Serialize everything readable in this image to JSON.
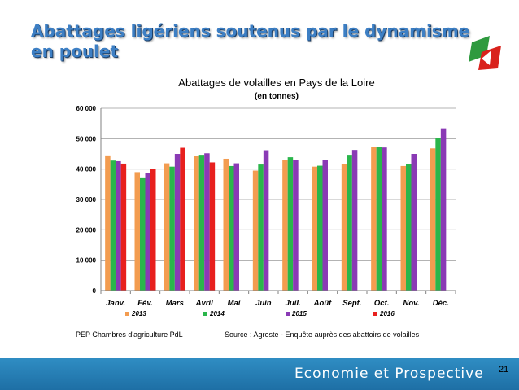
{
  "slide": {
    "title": "Abattages ligériens soutenus par le dynamisme en poulet",
    "footer": "Economie et Prospective",
    "page_number": "21",
    "source_left": "PEP Chambres d'agriculture PdL",
    "source_right": "Source : Agreste - Enquête auprès des abattoirs de volailles",
    "colors": {
      "title": "#3d7fc4",
      "footer": "#1e6fa5",
      "logo_green": "#2e9a3f",
      "logo_red": "#d9221c"
    }
  },
  "chart_data": {
    "type": "bar",
    "title": "Abattages de volailles en Pays de la Loire",
    "subtitle": "(en tonnes)",
    "categories": [
      "Janv.",
      "Fév.",
      "Mars",
      "Avril",
      "Mai",
      "Juin",
      "Juil.",
      "Août",
      "Sept.",
      "Oct.",
      "Nov.",
      "Déc."
    ],
    "series": [
      {
        "name": "2013",
        "color": "#f39c50",
        "values": [
          44500,
          39000,
          41900,
          44200,
          43400,
          39500,
          43000,
          40800,
          41700,
          47300,
          41000,
          46800
        ]
      },
      {
        "name": "2014",
        "color": "#2ab64b",
        "values": [
          42800,
          37000,
          40800,
          44700,
          41000,
          41500,
          43900,
          41100,
          44700,
          47200,
          41700,
          50300
        ]
      },
      {
        "name": "2015",
        "color": "#8a3ab5",
        "values": [
          42600,
          38700,
          45000,
          45200,
          41900,
          46200,
          43100,
          43000,
          46300,
          47100,
          45000,
          53400
        ]
      },
      {
        "name": "2016",
        "color": "#e8201e",
        "values": [
          41800,
          40100,
          47000,
          42200,
          null,
          null,
          null,
          null,
          null,
          null,
          null,
          null
        ]
      }
    ],
    "ylim": [
      0,
      60000
    ],
    "yticks": [
      0,
      10000,
      20000,
      30000,
      40000,
      50000,
      60000
    ],
    "ytick_labels": [
      "0",
      "10 000",
      "20 000",
      "30 000",
      "40 000",
      "50 000",
      "60 000"
    ],
    "xlabel": "",
    "ylabel": "",
    "grid": true,
    "legend_position": "bottom"
  }
}
